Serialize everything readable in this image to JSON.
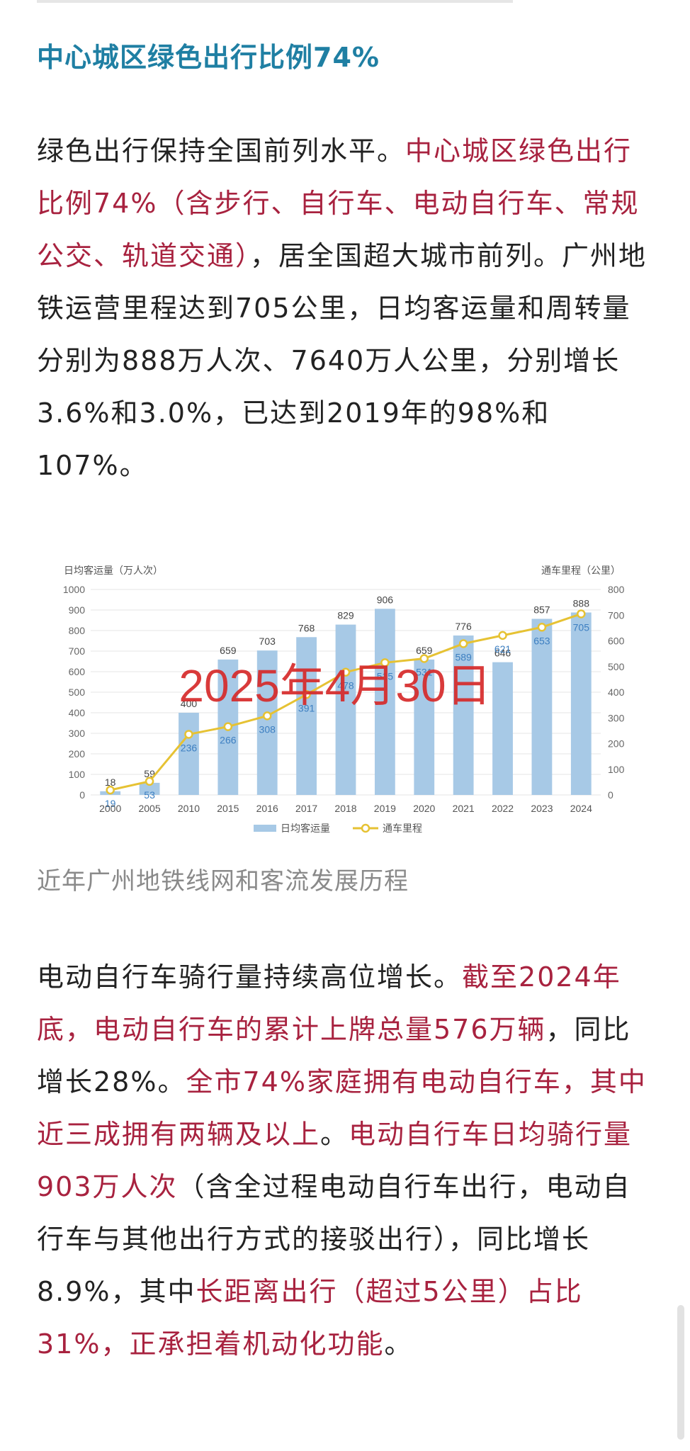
{
  "heading": "中心城区绿色出行比例74%",
  "paragraph1": [
    {
      "t": "绿色出行保持全国前列水平。",
      "red": false
    },
    {
      "t": "中心城区绿色出行比例74%（含步行、自行车、电动自行车、常规公交、轨道交通）",
      "red": true
    },
    {
      "t": "，居全国超大城市前列。广州地铁运营里程达到705公里，日均客运量和周转量分别为888万人次、7640万人公里，分别增长3.6%和3.0%，已达到2019年的98%和107%。",
      "red": false
    }
  ],
  "watermark": "2025年4月30日",
  "caption": "近年广州地铁线网和客流发展历程",
  "paragraph2": [
    {
      "t": "电动自行车骑行量持续高位增长。",
      "red": false
    },
    {
      "t": "截至2024年底，电动自行车的累计上牌总量576万辆",
      "red": true
    },
    {
      "t": "，同比增长28%。",
      "red": false
    },
    {
      "t": "全市74%家庭拥有电动自行车，其中近三成拥有两辆及以上",
      "red": true
    },
    {
      "t": "。",
      "red": false
    },
    {
      "t": "电动自行车日均骑行量903万人次",
      "red": true
    },
    {
      "t": "（含全过程电动自行车出行，电动自行车与其他出行方式的接驳出行），同比增长8.9%，其中",
      "red": false
    },
    {
      "t": "长距离出行（超过5公里）占比31%，正承担着机动化功能",
      "red": true
    },
    {
      "t": "。",
      "red": false
    }
  ],
  "colors": {
    "heading": "#1f7fa3",
    "emphasis": "#a8223f",
    "bar": "#a7c9e6",
    "line": "#e6c233",
    "watermark": "#d62a2a"
  },
  "chart_data": {
    "type": "bar",
    "categories": [
      "2000",
      "2005",
      "2010",
      "2015",
      "2016",
      "2017",
      "2018",
      "2019",
      "2020",
      "2021",
      "2022",
      "2023",
      "2024"
    ],
    "series": [
      {
        "name": "日均客运量",
        "type": "bar",
        "axis": "left",
        "values": [
          18,
          59,
          400,
          659,
          703,
          768,
          829,
          906,
          659,
          776,
          646,
          857,
          888
        ]
      },
      {
        "name": "通车里程",
        "type": "line",
        "axis": "right",
        "values": [
          19,
          53,
          236,
          266,
          308,
          391,
          478,
          515,
          531,
          589,
          621,
          653,
          705
        ]
      }
    ],
    "ylabel_left": "日均客运量（万人次）",
    "ylabel_right": "通车里程（公里）",
    "ylim_left": [
      0,
      1000
    ],
    "ylim_right": [
      0,
      800
    ],
    "yticks_left": [
      0,
      100,
      200,
      300,
      400,
      500,
      600,
      700,
      800,
      900,
      1000
    ],
    "yticks_right": [
      0,
      100,
      200,
      300,
      400,
      500,
      600,
      700,
      800
    ],
    "grid": true,
    "legend": "bottom"
  }
}
